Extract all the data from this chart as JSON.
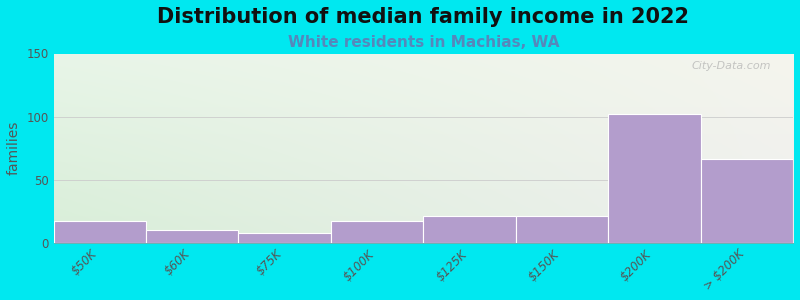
{
  "title": "Distribution of median family income in 2022",
  "subtitle": "White residents in Machias, WA",
  "ylabel": "families",
  "categories": [
    "$50K",
    "$60K",
    "$75K",
    "$100K",
    "$125K",
    "$150K",
    "$200K",
    "> $200K"
  ],
  "values": [
    17,
    10,
    8,
    17,
    21,
    21,
    102,
    66
  ],
  "bar_color": "#b39dcc",
  "bar_edge_color": "#ffffff",
  "background_outer": "#00e8f0",
  "plot_bg_topleft": "#e8f5e8",
  "plot_bg_topright": "#f5f5ee",
  "plot_bg_bottomleft": "#d8eed8",
  "plot_bg_bottomright": "#eeeeee",
  "title_color": "#111111",
  "subtitle_color": "#5588bb",
  "ylabel_color": "#555555",
  "tick_color": "#555555",
  "grid_color": "#cccccc",
  "ylim": [
    0,
    150
  ],
  "yticks": [
    0,
    50,
    100,
    150
  ],
  "watermark": "City-Data.com",
  "title_fontsize": 15,
  "subtitle_fontsize": 11,
  "ylabel_fontsize": 10,
  "tick_fontsize": 8.5
}
